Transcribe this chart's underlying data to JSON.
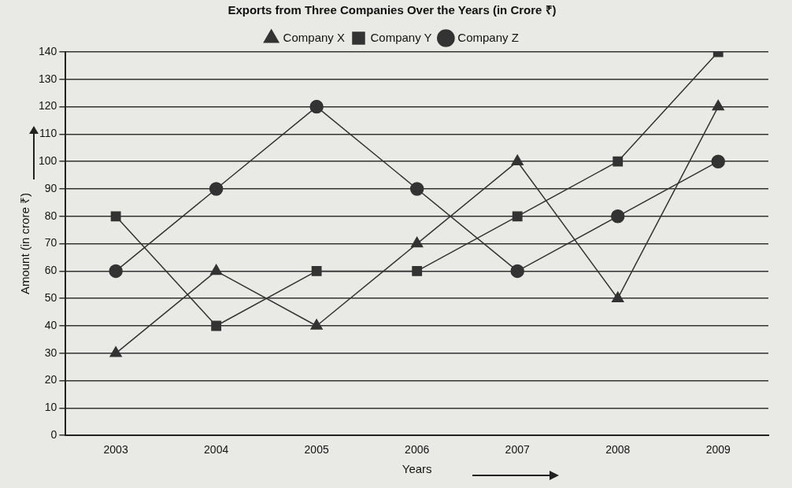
{
  "chart_data": {
    "type": "line",
    "title": "Exports from Three Companies Over the Years (in Crore ₹)",
    "xlabel": "Years",
    "ylabel": "Amount (in crore ₹)",
    "categories": [
      "2003",
      "2004",
      "2005",
      "2006",
      "2007",
      "2008",
      "2009"
    ],
    "series": [
      {
        "name": "Company X",
        "color": "#333333",
        "marker": "triangle",
        "values": [
          30,
          60,
          40,
          70,
          100,
          50,
          120
        ]
      },
      {
        "name": "Company Y",
        "color": "#333333",
        "marker": "square",
        "values": [
          80,
          40,
          60,
          60,
          80,
          100,
          140
        ]
      },
      {
        "name": "Company Z",
        "color": "#333333",
        "marker": "circle",
        "values": [
          60,
          90,
          120,
          90,
          60,
          80,
          100
        ]
      }
    ],
    "ylim": [
      0,
      140
    ],
    "yticks": [
      0,
      10,
      20,
      30,
      40,
      50,
      60,
      70,
      80,
      90,
      100,
      110,
      120,
      130,
      140
    ],
    "grid": "y",
    "legend": "top",
    "line_style": "solid"
  }
}
